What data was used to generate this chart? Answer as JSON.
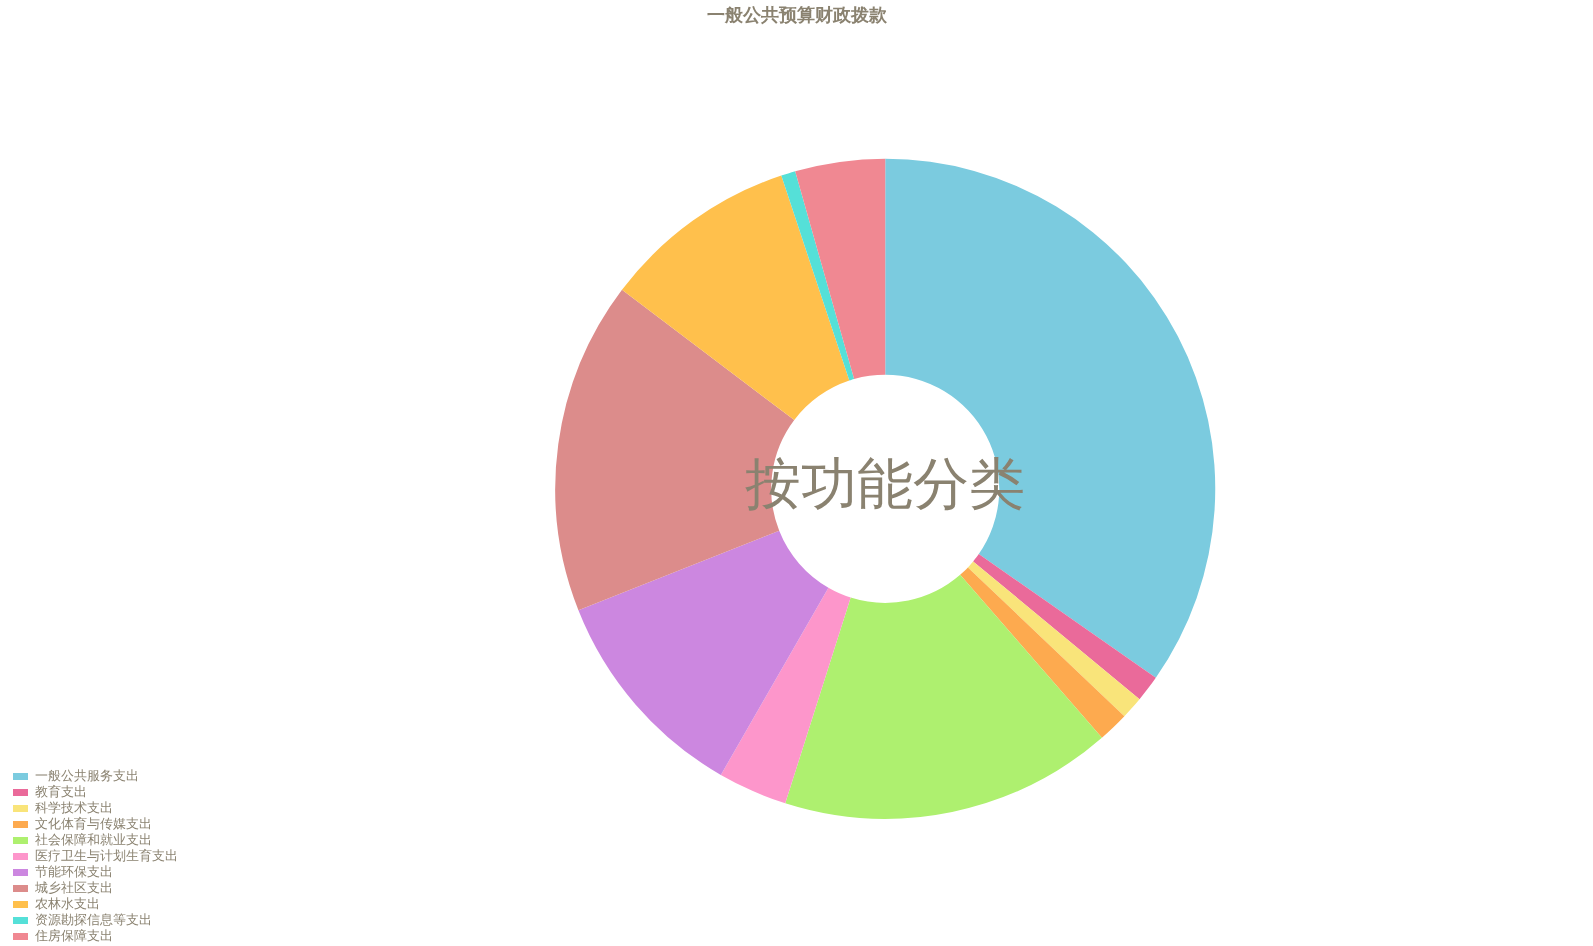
{
  "chart_data": {
    "type": "donut",
    "title": "一般公共预算财政拨款",
    "annotations": [
      "按功能分类"
    ],
    "legend": "bottom left",
    "categories": [
      "一般公共服务支出",
      "教育支出",
      "科学技术支出",
      "文化体育与传媒支出",
      "社会保障和就业支出",
      "医疗卫生与计划生育支出",
      "节能环保支出",
      "城乡社区支出",
      "农林水支出",
      "资源勘探信息等支出",
      "住房保障支出"
    ],
    "values": [
      34.7,
      1.3,
      1.1,
      1.5,
      16.3,
      3.4,
      10.7,
      16.3,
      9.6,
      0.7,
      4.4
    ],
    "colors": [
      "#7bcbdf",
      "#ea6a9a",
      "#f9e47a",
      "#fdaa4f",
      "#aef06f",
      "#fd96cb",
      "#cc87e0",
      "#dc8c8b",
      "#ffc04c",
      "#55e0d8",
      "#f08892"
    ]
  }
}
